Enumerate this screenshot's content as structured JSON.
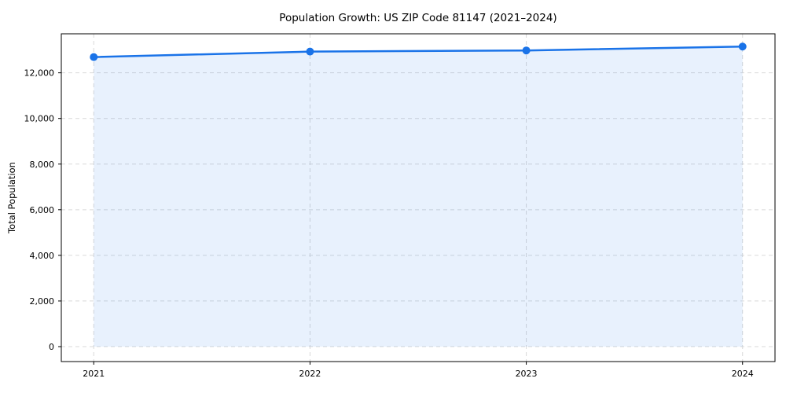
{
  "chart_data": {
    "type": "area",
    "title": "Population Growth: US ZIP Code 81147 (2021–2024)",
    "xlabel": "",
    "ylabel": "Total Population",
    "x": [
      2021,
      2022,
      2023,
      2024
    ],
    "series": [
      {
        "name": "Total Population",
        "values": [
          12690,
          12930,
          12980,
          13150
        ]
      }
    ],
    "x_tick_labels": [
      "2021",
      "2022",
      "2023",
      "2024"
    ],
    "y_ticks": [
      0,
      2000,
      4000,
      6000,
      8000,
      10000,
      12000
    ],
    "y_tick_labels": [
      "0",
      "2,000",
      "4,000",
      "6,000",
      "8,000",
      "10,000",
      "12,000"
    ],
    "xlim": [
      2020.85,
      2024.15
    ],
    "ylim": [
      -655,
      13710
    ],
    "fill_baseline": 0,
    "grid": true,
    "grid_style": "dashed",
    "legend_position": "none",
    "colors": {
      "line": "#1a73e8",
      "marker": "#1a73e8",
      "fill": "rgba(26,115,232,0.10)",
      "grid": "#d9d9d9",
      "spine": "#000000",
      "text": "#000000",
      "background": "#ffffff"
    }
  }
}
